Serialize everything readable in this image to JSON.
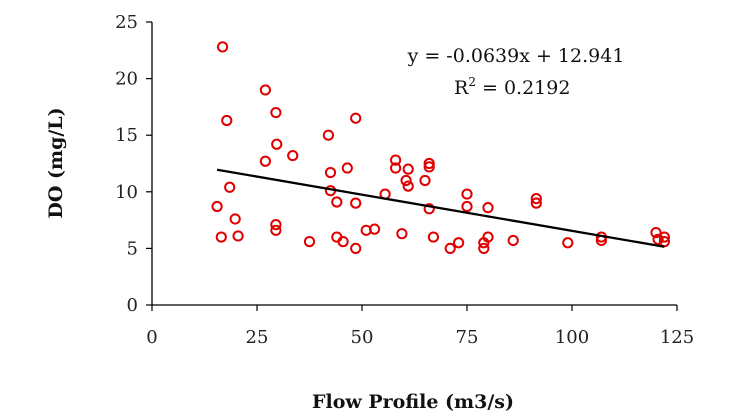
{
  "chart_data": {
    "type": "scatter",
    "xlabel": "Flow Profile (m3/s)",
    "ylabel": "DO (mg/L)",
    "xlim": [
      0,
      125
    ],
    "ylim": [
      0,
      25
    ],
    "x_ticks": [
      "0",
      "25",
      "50",
      "75",
      "100",
      "125"
    ],
    "y_ticks": [
      "0",
      "5",
      "10",
      "15",
      "20",
      "25"
    ],
    "grid": false,
    "marker": "open-circle",
    "marker_color": "#e00000",
    "trendline": {
      "type": "linear",
      "slope": -0.0639,
      "intercept": 12.941,
      "x_range": [
        15.5,
        122
      ],
      "color": "#000000"
    },
    "annotations": {
      "equation": "y = -0.0639x + 12.941",
      "r2_prefix": "R",
      "r2_sup": "2",
      "r2_value": " = 0.2192"
    },
    "points": [
      {
        "x": 15.5,
        "y": 8.7
      },
      {
        "x": 16.5,
        "y": 6.0
      },
      {
        "x": 16.8,
        "y": 22.8
      },
      {
        "x": 17.8,
        "y": 16.3
      },
      {
        "x": 18.5,
        "y": 10.4
      },
      {
        "x": 19.8,
        "y": 7.6
      },
      {
        "x": 20.5,
        "y": 6.1
      },
      {
        "x": 27.0,
        "y": 12.7
      },
      {
        "x": 27.0,
        "y": 19.0
      },
      {
        "x": 29.5,
        "y": 17.0
      },
      {
        "x": 29.7,
        "y": 14.2
      },
      {
        "x": 29.5,
        "y": 7.1
      },
      {
        "x": 29.5,
        "y": 6.6
      },
      {
        "x": 33.5,
        "y": 13.2
      },
      {
        "x": 37.5,
        "y": 5.6
      },
      {
        "x": 42.0,
        "y": 15.0
      },
      {
        "x": 42.5,
        "y": 11.7
      },
      {
        "x": 42.5,
        "y": 10.1
      },
      {
        "x": 44.0,
        "y": 9.1
      },
      {
        "x": 44.0,
        "y": 6.0
      },
      {
        "x": 45.5,
        "y": 5.6
      },
      {
        "x": 46.5,
        "y": 12.1
      },
      {
        "x": 48.5,
        "y": 16.5
      },
      {
        "x": 48.5,
        "y": 9.0
      },
      {
        "x": 48.5,
        "y": 5.0
      },
      {
        "x": 51.0,
        "y": 6.6
      },
      {
        "x": 53.0,
        "y": 6.7
      },
      {
        "x": 55.5,
        "y": 9.8
      },
      {
        "x": 58.0,
        "y": 12.8
      },
      {
        "x": 58.0,
        "y": 12.1
      },
      {
        "x": 59.5,
        "y": 6.3
      },
      {
        "x": 60.5,
        "y": 11.0
      },
      {
        "x": 61.0,
        "y": 12.0
      },
      {
        "x": 61.0,
        "y": 10.5
      },
      {
        "x": 65.0,
        "y": 11.0
      },
      {
        "x": 66.0,
        "y": 12.5
      },
      {
        "x": 66.0,
        "y": 12.2
      },
      {
        "x": 66.0,
        "y": 8.5
      },
      {
        "x": 67.0,
        "y": 6.0
      },
      {
        "x": 71.0,
        "y": 5.0
      },
      {
        "x": 73.0,
        "y": 5.5
      },
      {
        "x": 75.0,
        "y": 9.8
      },
      {
        "x": 75.0,
        "y": 8.7
      },
      {
        "x": 79.0,
        "y": 5.5
      },
      {
        "x": 79.0,
        "y": 5.0
      },
      {
        "x": 80.0,
        "y": 6.0
      },
      {
        "x": 80.0,
        "y": 8.6
      },
      {
        "x": 86.0,
        "y": 5.7
      },
      {
        "x": 91.5,
        "y": 9.4
      },
      {
        "x": 91.5,
        "y": 9.0
      },
      {
        "x": 99.0,
        "y": 5.5
      },
      {
        "x": 107.0,
        "y": 6.0
      },
      {
        "x": 107.0,
        "y": 5.7
      },
      {
        "x": 120.0,
        "y": 6.4
      },
      {
        "x": 120.5,
        "y": 5.8
      },
      {
        "x": 122.0,
        "y": 6.0
      },
      {
        "x": 122.0,
        "y": 5.6
      }
    ]
  }
}
